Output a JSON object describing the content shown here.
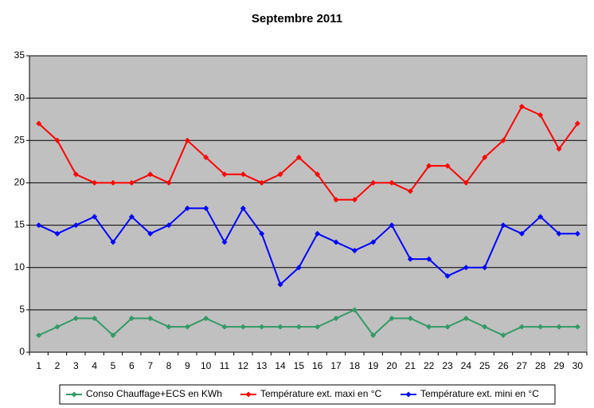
{
  "chart_data": {
    "type": "line",
    "title": "Septembre 2011",
    "categories": [
      1,
      2,
      3,
      4,
      5,
      6,
      7,
      8,
      9,
      10,
      11,
      12,
      13,
      14,
      15,
      16,
      17,
      18,
      19,
      20,
      21,
      22,
      23,
      24,
      25,
      26,
      27,
      28,
      29,
      30
    ],
    "series": [
      {
        "name": "Conso Chauffage+ECS en KWh",
        "color": "#339966",
        "values": [
          2,
          3,
          4,
          4,
          2,
          4,
          4,
          3,
          3,
          4,
          3,
          3,
          3,
          3,
          3,
          3,
          4,
          5,
          2,
          4,
          4,
          3,
          3,
          4,
          3,
          2,
          3,
          3,
          3,
          3
        ]
      },
      {
        "name": "Température ext. maxi en °C",
        "color": "#ff0000",
        "values": [
          27,
          25,
          21,
          20,
          20,
          20,
          21,
          20,
          25,
          23,
          21,
          21,
          20,
          21,
          23,
          21,
          18,
          18,
          20,
          20,
          19,
          22,
          22,
          20,
          23,
          25,
          29,
          28,
          24,
          27
        ]
      },
      {
        "name": "Température ext. mini en °C",
        "color": "#0000ff",
        "values": [
          15,
          14,
          15,
          16,
          13,
          16,
          14,
          15,
          17,
          17,
          13,
          17,
          14,
          8,
          10,
          14,
          13,
          12,
          13,
          15,
          11,
          11,
          9,
          10,
          10,
          15,
          14,
          16,
          14,
          14
        ]
      }
    ],
    "ylim": [
      0,
      35
    ],
    "yticks": [
      0,
      5,
      10,
      15,
      20,
      25,
      30,
      35
    ],
    "grid": true,
    "legend": "bottom"
  }
}
